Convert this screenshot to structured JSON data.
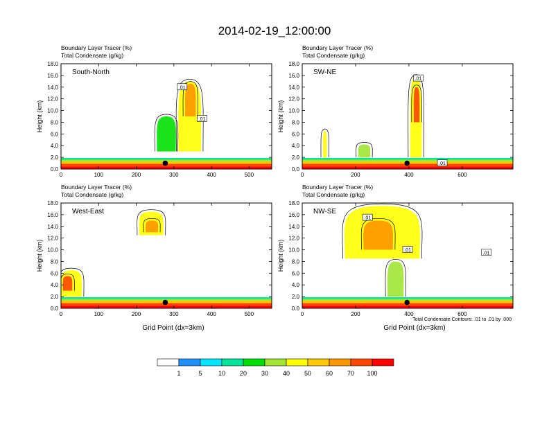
{
  "figure_title": "2014-02-19_12:00:00",
  "footnote": "Total Condensate Contours: .01 to .01 by .000",
  "chart_data": [
    {
      "type": "contour",
      "panel": "South-North",
      "header_lines": [
        "Boundary Layer Tracer    (%)",
        "Total Condensate    (g/kg)"
      ],
      "ylabel": "Height (km)",
      "xlabel": "",
      "xlim": [
        0,
        560
      ],
      "xticks": [
        0,
        100,
        200,
        300,
        400,
        500
      ],
      "ylim": [
        0,
        18
      ],
      "yticks": [
        "0.0",
        "2.0",
        "4.0",
        "6.0",
        "8.0",
        "10.0",
        "12.0",
        "14.0",
        "16.0",
        "18.0"
      ],
      "marker": {
        "x": 277,
        "y": 1.0
      },
      "contour_labels": [
        {
          "text": ".01",
          "x": 322,
          "y": 14.0
        },
        {
          "text": ".01",
          "x": 375,
          "y": 8.6
        }
      ],
      "tracer_blobs": [
        {
          "x0": 312,
          "x1": 372,
          "y0": 3.0,
          "y1": 15.0,
          "value": 40
        },
        {
          "x0": 330,
          "x1": 358,
          "y0": 9.0,
          "y1": 14.6,
          "value": 60
        },
        {
          "x0": 255,
          "x1": 305,
          "y0": 3.0,
          "y1": 9.0,
          "value": 20
        }
      ]
    },
    {
      "type": "contour",
      "panel": "SW-NE",
      "header_lines": [
        "Boundary Layer Tracer    (%)",
        "Total Condensate    (g/kg)"
      ],
      "ylabel": "Height (km)",
      "xlabel": "",
      "xlim": [
        0,
        790
      ],
      "xticks": [
        0,
        200,
        400,
        600
      ],
      "ylim": [
        0,
        18
      ],
      "yticks": [
        "0.0",
        "2.0",
        "4.0",
        "6.0",
        "8.0",
        "10.0",
        "12.0",
        "14.0",
        "16.0",
        "18.0"
      ],
      "marker": {
        "x": 393,
        "y": 1.0
      },
      "contour_labels": [
        {
          "text": ".01",
          "x": 435,
          "y": 15.5
        },
        {
          "text": ".01",
          "x": 525,
          "y": 1.0
        }
      ],
      "tracer_blobs": [
        {
          "x0": 405,
          "x1": 448,
          "y0": 2.0,
          "y1": 15.8,
          "value": 40
        },
        {
          "x0": 418,
          "x1": 440,
          "y0": 8.0,
          "y1": 14.0,
          "value": 70
        },
        {
          "x0": 78,
          "x1": 92,
          "y0": 2.0,
          "y1": 6.5,
          "value": 40
        },
        {
          "x0": 210,
          "x1": 255,
          "y0": 2.0,
          "y1": 4.2,
          "value": 30
        }
      ]
    },
    {
      "type": "contour",
      "panel": "West-East",
      "header_lines": [
        "Boundary Layer Tracer    (%)",
        "Total Condensate    (g/kg)"
      ],
      "ylabel": "Height (km)",
      "xlabel": "Grid Point (dx=3km)",
      "xlim": [
        0,
        560
      ],
      "xticks": [
        0,
        100,
        200,
        300,
        400,
        500
      ],
      "ylim": [
        0,
        18
      ],
      "yticks": [
        "0.0",
        "2.0",
        "4.0",
        "6.0",
        "8.0",
        "10.0",
        "12.0",
        "14.0",
        "16.0",
        "18.0"
      ],
      "marker": {
        "x": 277,
        "y": 1.0
      },
      "contour_labels": [],
      "tracer_blobs": [
        {
          "x0": 208,
          "x1": 272,
          "y0": 12.5,
          "y1": 16.5,
          "value": 40
        },
        {
          "x0": 225,
          "x1": 258,
          "y0": 13.0,
          "y1": 15.0,
          "value": 60
        },
        {
          "x0": 0,
          "x1": 55,
          "y0": 2.0,
          "y1": 6.5,
          "value": 40
        },
        {
          "x0": 5,
          "x1": 30,
          "y0": 3.0,
          "y1": 5.5,
          "value": 70
        }
      ]
    },
    {
      "type": "contour",
      "panel": "NW-SE",
      "header_lines": [
        "Boundary Layer Tracer    (%)",
        "Total Condensate    (g/kg)"
      ],
      "ylabel": "Height (km)",
      "xlabel": "Grid Point (dx=3km)",
      "xlim": [
        0,
        790
      ],
      "xticks": [
        0,
        200,
        400,
        600
      ],
      "ylim": [
        0,
        18
      ],
      "yticks": [
        "0.0",
        "2.0",
        "4.0",
        "6.0",
        "8.0",
        "10.0",
        "12.0",
        "14.0",
        "16.0",
        "18.0"
      ],
      "marker": {
        "x": 393,
        "y": 1.0
      },
      "contour_labels": [
        {
          "text": ".01",
          "x": 245,
          "y": 15.5
        },
        {
          "text": ".01",
          "x": 395,
          "y": 10.0
        },
        {
          "text": ".01",
          "x": 690,
          "y": 9.5
        }
      ],
      "tracer_blobs": [
        {
          "x0": 160,
          "x1": 440,
          "y0": 8.5,
          "y1": 17.5,
          "value": 40
        },
        {
          "x0": 230,
          "x1": 340,
          "y0": 10.0,
          "y1": 15.0,
          "value": 60
        },
        {
          "x0": 320,
          "x1": 380,
          "y0": 2.0,
          "y1": 8.0,
          "value": 30
        }
      ]
    }
  ],
  "colorbar": {
    "levels": [
      "1",
      "5",
      "10",
      "20",
      "30",
      "40",
      "50",
      "60",
      "70",
      "100"
    ],
    "colors": [
      "#ffffff",
      "#1e90ff",
      "#00e5ff",
      "#00e59a",
      "#00e000",
      "#a0e632",
      "#ffff00",
      "#ffc800",
      "#ff9600",
      "#ff4600",
      "#ff0000"
    ]
  }
}
